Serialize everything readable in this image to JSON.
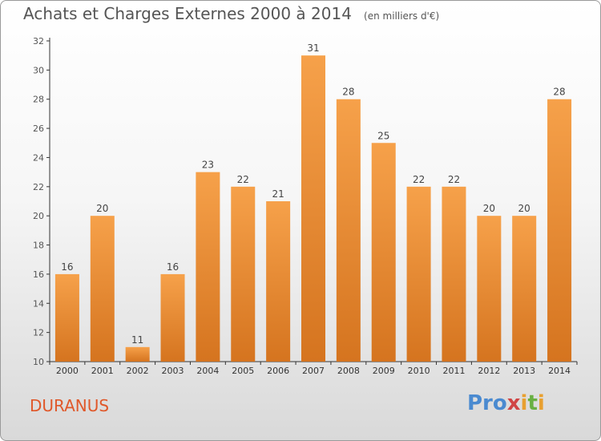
{
  "title": "Achats et Charges Externes 2000 à 2014",
  "subtitle": "(en milliers d'€)",
  "place_name": "DURANUS",
  "logo_text": "Proxiti",
  "colors": {
    "bar_light": "#f6a14a",
    "bar_dark": "#d5741f",
    "axis": "#333333",
    "grid_tick": "#555555",
    "place_name": "#e0582a"
  },
  "chart_data": {
    "type": "bar",
    "title": "Achats et Charges Externes 2000 à 2014",
    "subtitle": "(en milliers d'€)",
    "xlabel": "",
    "ylabel": "",
    "categories": [
      "2000",
      "2001",
      "2002",
      "2003",
      "2004",
      "2005",
      "2006",
      "2007",
      "2008",
      "2009",
      "2010",
      "2011",
      "2012",
      "2013",
      "2014"
    ],
    "values": [
      16,
      20,
      11,
      16,
      23,
      22,
      21,
      31,
      28,
      25,
      22,
      22,
      20,
      20,
      28
    ],
    "ylim": [
      10,
      32
    ],
    "yticks": [
      10,
      12,
      14,
      16,
      18,
      20,
      22,
      24,
      26,
      28,
      30,
      32
    ],
    "grid": false,
    "data_labels": true
  }
}
